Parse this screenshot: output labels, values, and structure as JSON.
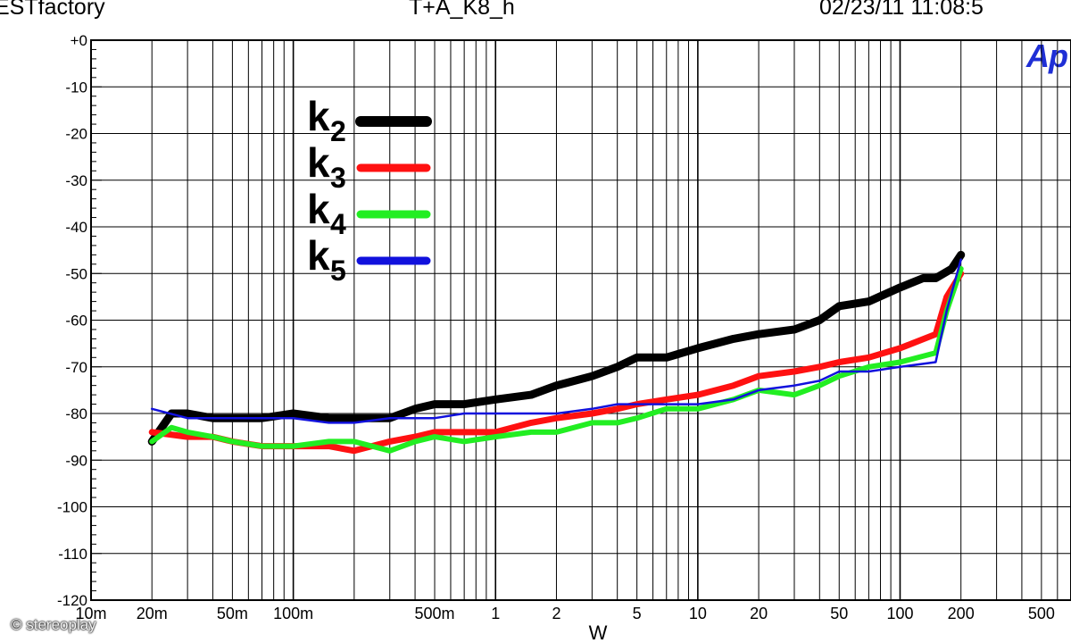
{
  "header": {
    "left": "ESTfactory",
    "center": "T+A_K8_h",
    "right": "02/23/11 11:08:5"
  },
  "logo_text": "Ap",
  "watermark": "© stereoplay",
  "chart_data": {
    "type": "line",
    "title": "T+A_K8_h",
    "xlabel": "W",
    "ylabel": "",
    "xscale": "log",
    "xlim": [
      0.01,
      700
    ],
    "ylim": [
      -120,
      0
    ],
    "grid": true,
    "legend_position": "top-left",
    "x_tick_labels": [
      {
        "v": 0.01,
        "label": "10m"
      },
      {
        "v": 0.02,
        "label": "20m"
      },
      {
        "v": 0.05,
        "label": "50m"
      },
      {
        "v": 0.1,
        "label": "100m"
      },
      {
        "v": 0.5,
        "label": "500m"
      },
      {
        "v": 1,
        "label": "1"
      },
      {
        "v": 2,
        "label": "2"
      },
      {
        "v": 5,
        "label": "5"
      },
      {
        "v": 10,
        "label": "10"
      },
      {
        "v": 20,
        "label": "20"
      },
      {
        "v": 50,
        "label": "50"
      },
      {
        "v": 100,
        "label": "100"
      },
      {
        "v": 200,
        "label": "200"
      },
      {
        "v": 500,
        "label": "500"
      }
    ],
    "y_tick_labels": [
      {
        "v": 0,
        "label": "+0"
      },
      {
        "v": -10,
        "label": "-10"
      },
      {
        "v": -20,
        "label": "-20"
      },
      {
        "v": -30,
        "label": "-30"
      },
      {
        "v": -40,
        "label": "-40"
      },
      {
        "v": -50,
        "label": "-50"
      },
      {
        "v": -60,
        "label": "-60"
      },
      {
        "v": -70,
        "label": "-70"
      },
      {
        "v": -80,
        "label": "-80"
      },
      {
        "v": -90,
        "label": "-90"
      },
      {
        "v": -100,
        "label": "-100"
      },
      {
        "v": -110,
        "label": "-110"
      },
      {
        "v": -120,
        "label": "-120"
      }
    ],
    "series": [
      {
        "name": "k",
        "sub": "2",
        "color": "#000000",
        "width": 9,
        "x": [
          0.02,
          0.025,
          0.03,
          0.04,
          0.05,
          0.07,
          0.1,
          0.15,
          0.2,
          0.3,
          0.4,
          0.5,
          0.7,
          1,
          1.5,
          2,
          3,
          4,
          5,
          7,
          10,
          15,
          20,
          30,
          40,
          50,
          70,
          100,
          130,
          150,
          180,
          200
        ],
        "y": [
          -86,
          -80,
          -80,
          -81,
          -81,
          -81,
          -80,
          -81,
          -81,
          -81,
          -79,
          -78,
          -78,
          -77,
          -76,
          -74,
          -72,
          -70,
          -68,
          -68,
          -66,
          -64,
          -63,
          -62,
          -60,
          -57,
          -56,
          -53,
          -51,
          -51,
          -49,
          -46
        ]
      },
      {
        "name": "k",
        "sub": "3",
        "color": "#ff1111",
        "width": 7,
        "x": [
          0.02,
          0.03,
          0.04,
          0.05,
          0.07,
          0.1,
          0.15,
          0.2,
          0.3,
          0.4,
          0.5,
          0.7,
          1,
          1.5,
          2,
          3,
          4,
          5,
          7,
          10,
          15,
          20,
          30,
          40,
          50,
          70,
          100,
          150,
          170,
          200
        ],
        "y": [
          -84,
          -85,
          -85,
          -86,
          -87,
          -87,
          -87,
          -88,
          -86,
          -85,
          -84,
          -84,
          -84,
          -82,
          -81,
          -80,
          -79,
          -78,
          -77,
          -76,
          -74,
          -72,
          -71,
          -70,
          -69,
          -68,
          -66,
          -63,
          -55,
          -50
        ]
      },
      {
        "name": "k",
        "sub": "4",
        "color": "#22ee22",
        "width": 6,
        "x": [
          0.02,
          0.025,
          0.03,
          0.04,
          0.05,
          0.07,
          0.1,
          0.15,
          0.2,
          0.3,
          0.4,
          0.5,
          0.7,
          1,
          1.5,
          2,
          3,
          4,
          5,
          7,
          10,
          15,
          20,
          30,
          40,
          50,
          70,
          100,
          150,
          170,
          200
        ],
        "y": [
          -86,
          -83,
          -84,
          -85,
          -86,
          -87,
          -87,
          -86,
          -86,
          -88,
          -86,
          -85,
          -86,
          -85,
          -84,
          -84,
          -82,
          -82,
          -81,
          -79,
          -79,
          -77,
          -75,
          -76,
          -74,
          -72,
          -70,
          -69,
          -67,
          -58,
          -49
        ]
      },
      {
        "name": "k",
        "sub": "5",
        "color": "#1111dd",
        "width": 2.5,
        "x": [
          0.02,
          0.03,
          0.04,
          0.05,
          0.07,
          0.1,
          0.15,
          0.2,
          0.3,
          0.4,
          0.5,
          0.7,
          1,
          1.5,
          2,
          3,
          4,
          5,
          7,
          10,
          15,
          20,
          30,
          40,
          50,
          70,
          100,
          150,
          170,
          200
        ],
        "y": [
          -79,
          -81,
          -81,
          -81,
          -81,
          -81,
          -82,
          -82,
          -81,
          -81,
          -81,
          -80,
          -80,
          -80,
          -80,
          -79,
          -78,
          -78,
          -78,
          -78,
          -77,
          -75,
          -74,
          -73,
          -71,
          -71,
          -70,
          -69,
          -58,
          -47
        ]
      }
    ]
  }
}
